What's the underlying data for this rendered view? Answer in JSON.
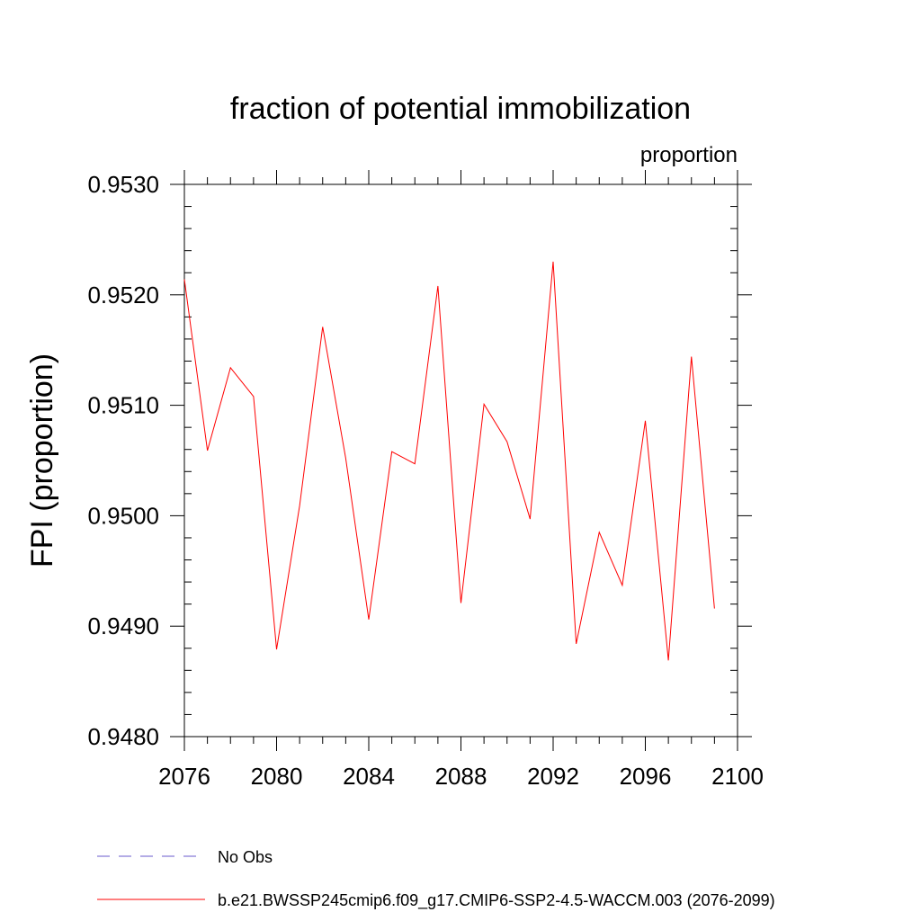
{
  "chart_data": {
    "type": "line",
    "title": "fraction of potential immobilization",
    "units_label": "proportion",
    "xlabel": "",
    "ylabel": "FPI  (proportion)",
    "xlim": [
      2076,
      2100
    ],
    "ylim": [
      0.948,
      0.953
    ],
    "xticks": [
      2076,
      2080,
      2084,
      2088,
      2092,
      2096,
      2100
    ],
    "xtick_labels": [
      "2076",
      "2080",
      "2084",
      "2088",
      "2092",
      "2096",
      "2100"
    ],
    "yticks": [
      0.948,
      0.949,
      0.95,
      0.951,
      0.952,
      0.953
    ],
    "ytick_labels": [
      "0.9480",
      "0.9490",
      "0.9500",
      "0.9510",
      "0.9520",
      "0.9530"
    ],
    "grid": false,
    "legend_position": "bottom-left",
    "series": [
      {
        "name": "b.e21.BWSSP245cmip6.f09_g17.CMIP6-SSP2-4.5-WACCM.003 (2076-2099)",
        "color": "#ff0000",
        "line_style": "solid",
        "x": [
          2076,
          2077,
          2078,
          2079,
          2080,
          2081,
          2082,
          2083,
          2084,
          2085,
          2086,
          2087,
          2088,
          2089,
          2090,
          2091,
          2092,
          2093,
          2094,
          2095,
          2096,
          2097,
          2098,
          2099
        ],
        "values": [
          0.95214,
          0.95059,
          0.95134,
          0.95108,
          0.94879,
          0.95009,
          0.95171,
          0.95052,
          0.94906,
          0.95058,
          0.95047,
          0.95208,
          0.94921,
          0.95101,
          0.95067,
          0.94997,
          0.9523,
          0.94884,
          0.94985,
          0.94937,
          0.95086,
          0.94869,
          0.95144,
          0.94916
        ]
      }
    ],
    "legend": [
      {
        "label": "No Obs",
        "color": "#6a5acd",
        "line_style": "dashed"
      },
      {
        "label": "b.e21.BWSSP245cmip6.f09_g17.CMIP6-SSP2-4.5-WACCM.003 (2076-2099)",
        "color": "#ff0000",
        "line_style": "solid"
      }
    ]
  }
}
